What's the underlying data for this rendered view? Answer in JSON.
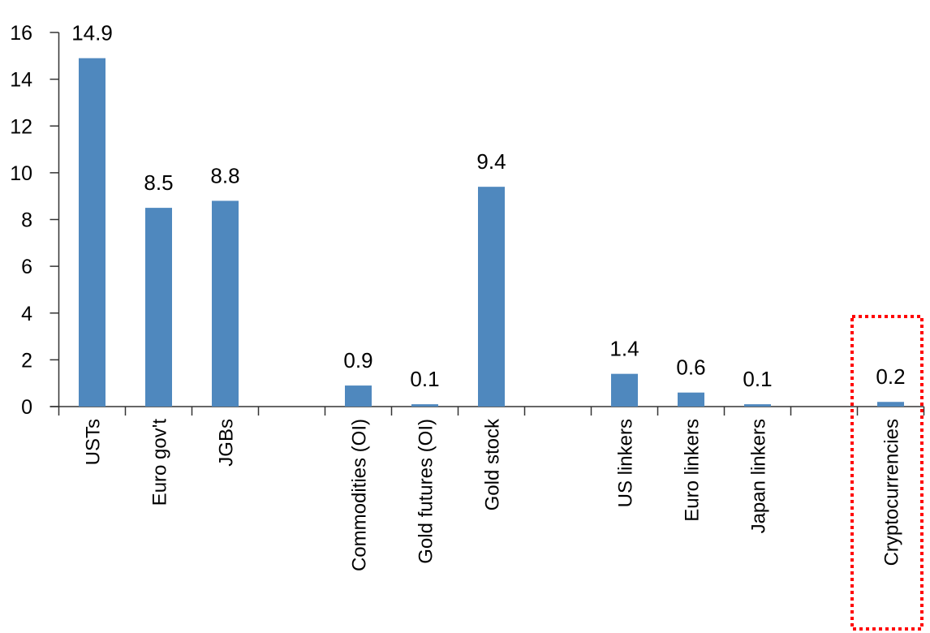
{
  "chart_data": {
    "type": "bar",
    "categories": [
      "USTs",
      "Euro gov't",
      "JGBs",
      "",
      "Commodities (OI)",
      "Gold futures (OI)",
      "Gold stock",
      "",
      "US linkers",
      "Euro linkers",
      "Japan linkers",
      "",
      "Cryptocurrencies"
    ],
    "values": [
      14.9,
      8.5,
      8.8,
      null,
      0.9,
      0.1,
      9.4,
      null,
      1.4,
      0.6,
      0.1,
      null,
      0.2
    ],
    "data_labels": [
      "14.9",
      "8.5",
      "8.8",
      "",
      "0.9",
      "0.1",
      "9.4",
      "",
      "1.4",
      "0.6",
      "0.1",
      "",
      "0.2"
    ],
    "title": "",
    "xlabel": "",
    "ylabel": "",
    "ylim": [
      0,
      16
    ],
    "yticks": [
      0,
      2,
      4,
      6,
      8,
      10,
      12,
      14,
      16
    ],
    "grid": false,
    "legend": "none",
    "bar_color": "#4F88BE",
    "highlight": {
      "category": "Cryptocurrencies",
      "style": "red dotted box",
      "color": "#FF0000"
    }
  }
}
